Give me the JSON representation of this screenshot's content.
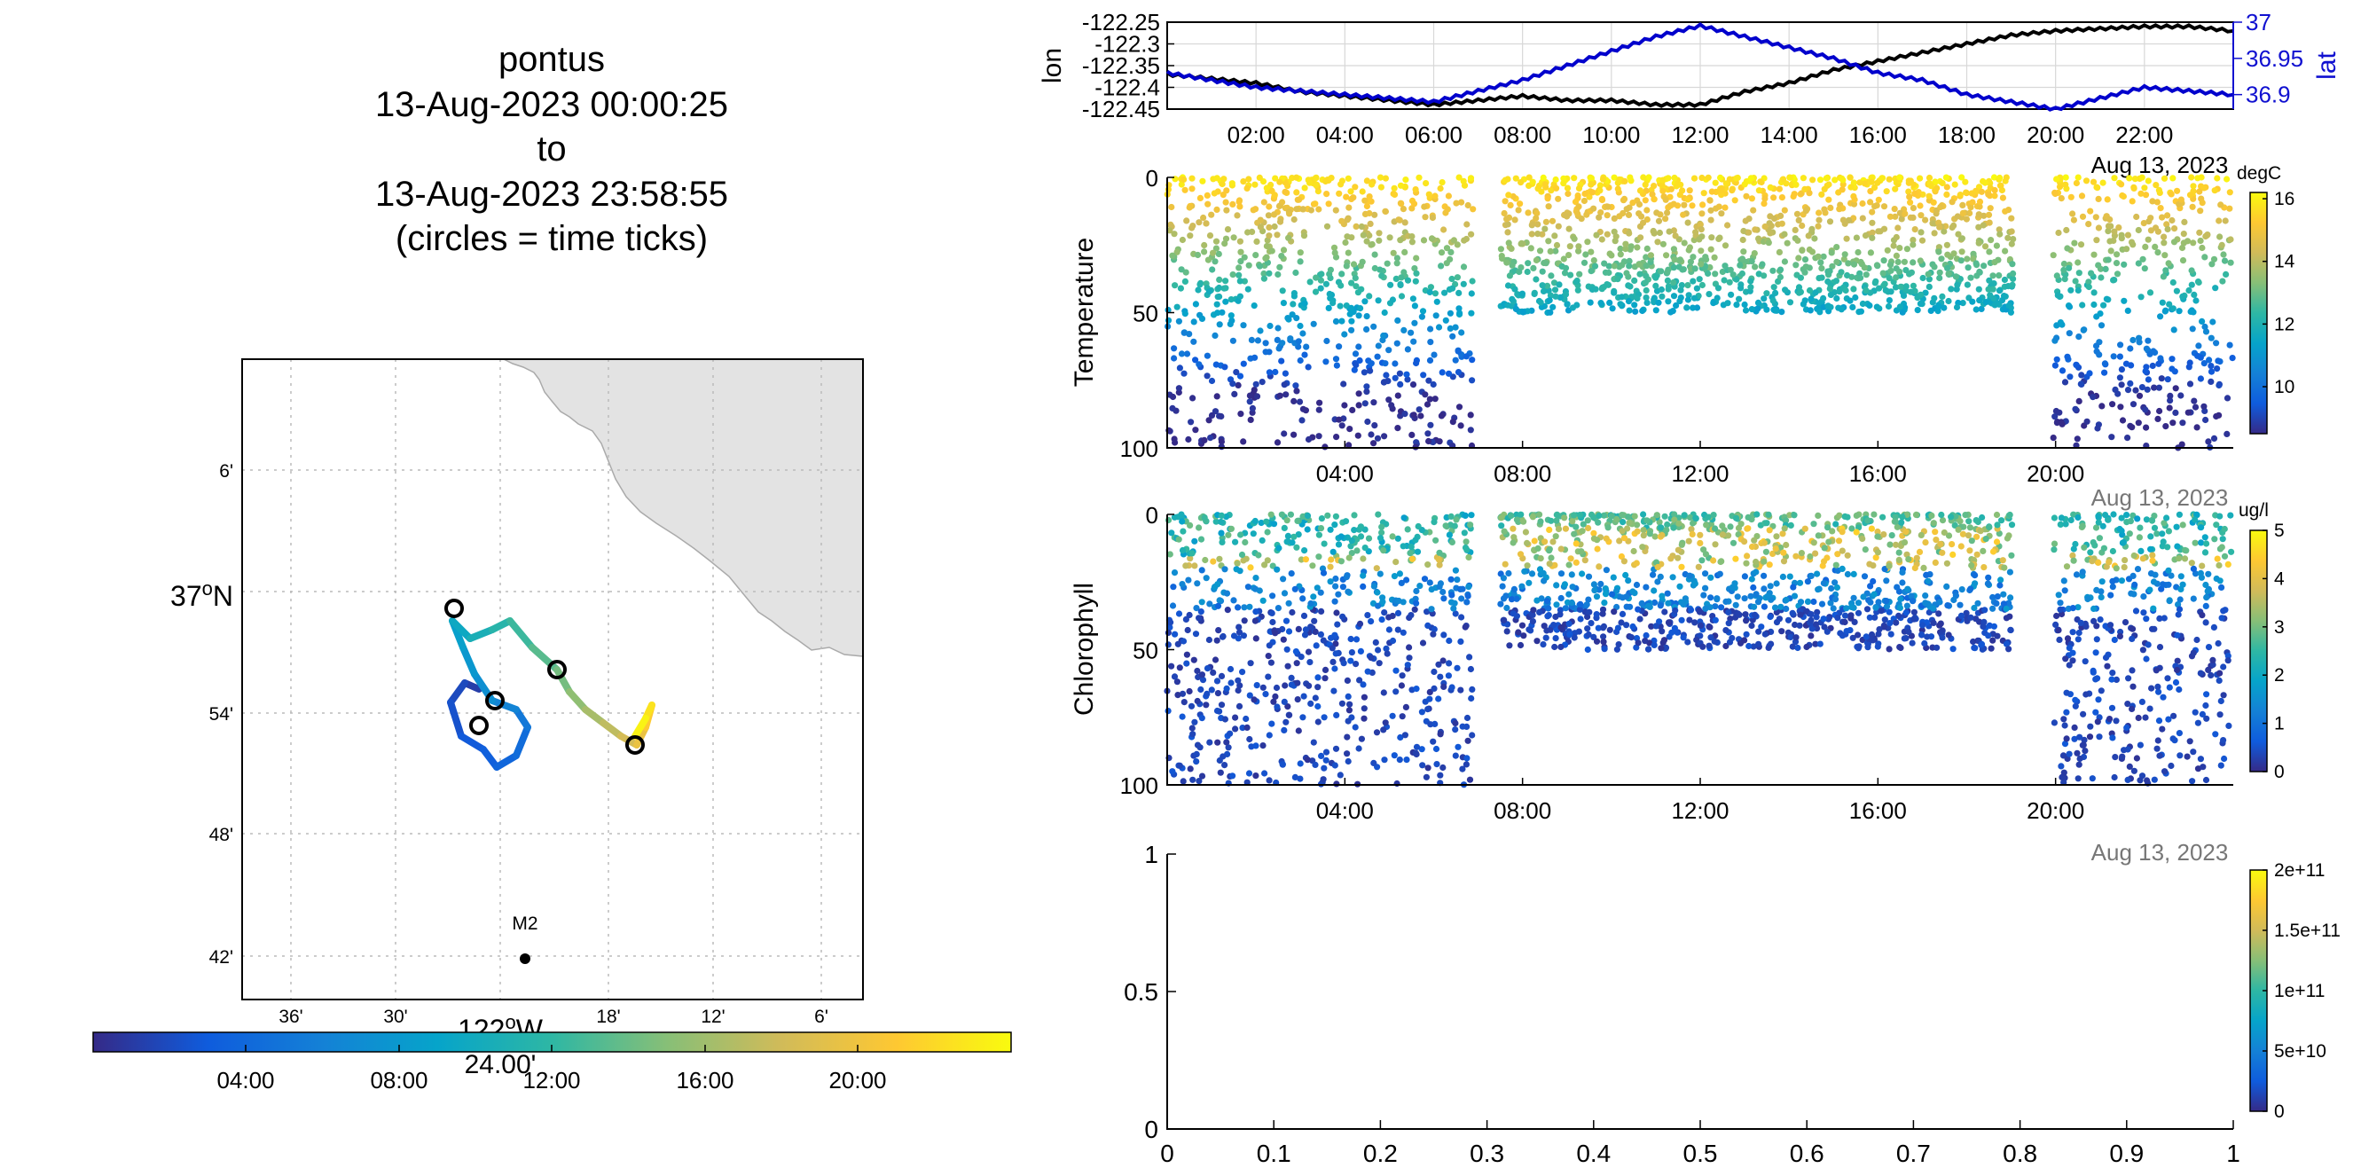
{
  "title": {
    "lines": [
      "pontus",
      "13-Aug-2023 00:00:25",
      "to",
      "13-Aug-2023 23:58:55",
      "(circles = time ticks)"
    ]
  },
  "map": {
    "lat_ticks": [
      "6'",
      "37",
      "54'",
      "48'",
      "42'"
    ],
    "lat_center_suffix": "N",
    "lon_ticks": [
      "36'",
      "30'",
      "24'",
      "18'",
      "12'",
      "6'"
    ],
    "lon_center_label": "122",
    "lon_center_suffix": "W",
    "lon_center_minutes": "24.00'",
    "station_label": "M2",
    "track_color": "#000000"
  },
  "time_colorbar": {
    "ticks": [
      "04:00",
      "08:00",
      "12:00",
      "16:00",
      "20:00"
    ]
  },
  "colors": {
    "land": "#e3e3e3",
    "lon_line": "#000000",
    "lat_line": "#0000cc",
    "parula": [
      "#352a87",
      "#0f5cdd",
      "#1481d6",
      "#06a4ca",
      "#2eb7a4",
      "#87bf77",
      "#d1bb59",
      "#fec832",
      "#f9fb0e"
    ]
  },
  "chart_data": [
    {
      "type": "line",
      "title": "",
      "xlabel": "",
      "ylabel": "lon",
      "y2label": "lat",
      "x_ticks": [
        "02:00",
        "04:00",
        "06:00",
        "08:00",
        "10:00",
        "12:00",
        "14:00",
        "16:00",
        "18:00",
        "20:00",
        "22:00"
      ],
      "date_label": "Aug 13, 2023",
      "ylim": [
        -122.45,
        -122.25
      ],
      "y_ticks": [
        "-122.25",
        "-122.3",
        "-122.35",
        "-122.4",
        "-122.45"
      ],
      "y2lim": [
        36.88,
        37.0
      ],
      "y2_ticks": [
        "37",
        "36.95",
        "36.9"
      ],
      "series": [
        {
          "name": "lon",
          "x": [
            "00:00",
            "01:00",
            "02:00",
            "03:00",
            "04:00",
            "05:00",
            "06:00",
            "07:00",
            "08:00",
            "09:00",
            "10:00",
            "11:00",
            "12:00",
            "13:00",
            "14:00",
            "15:00",
            "16:00",
            "17:00",
            "18:00",
            "19:00",
            "20:00",
            "21:00",
            "22:00",
            "23:00",
            "24:00"
          ],
          "values": [
            -122.37,
            -122.38,
            -122.39,
            -122.41,
            -122.42,
            -122.43,
            -122.44,
            -122.43,
            -122.42,
            -122.43,
            -122.43,
            -122.44,
            -122.44,
            -122.41,
            -122.39,
            -122.36,
            -122.34,
            -122.32,
            -122.3,
            -122.28,
            -122.27,
            -122.265,
            -122.26,
            -122.26,
            -122.27
          ]
        },
        {
          "name": "lat",
          "x": [
            "00:00",
            "01:00",
            "02:00",
            "03:00",
            "04:00",
            "05:00",
            "06:00",
            "07:00",
            "08:00",
            "09:00",
            "10:00",
            "11:00",
            "12:00",
            "13:00",
            "14:00",
            "15:00",
            "16:00",
            "17:00",
            "18:00",
            "19:00",
            "20:00",
            "21:00",
            "22:00",
            "23:00",
            "24:00"
          ],
          "values": [
            36.93,
            36.92,
            36.91,
            36.905,
            36.9,
            36.895,
            36.89,
            36.905,
            36.92,
            36.94,
            36.96,
            36.98,
            36.995,
            36.98,
            36.965,
            36.95,
            36.93,
            36.92,
            36.9,
            36.89,
            36.88,
            36.895,
            36.91,
            36.905,
            36.9
          ]
        }
      ]
    },
    {
      "type": "scatter",
      "title": "",
      "ylabel": "Temperature",
      "colorbar_unit": "degC",
      "colorbar_ticks": [
        "16",
        "14",
        "12",
        "10"
      ],
      "clim": [
        8.5,
        16.2
      ],
      "x_ticks": [
        "04:00",
        "08:00",
        "12:00",
        "16:00",
        "20:00"
      ],
      "date_label": "Aug 13, 2023",
      "ylim": [
        100,
        0
      ],
      "y_ticks": [
        "0",
        "50",
        "100"
      ],
      "description_gaps": [
        [
          "07:30",
          "07:30"
        ],
        [
          "19:00",
          "19:50"
        ]
      ],
      "depth_max_by_period": [
        [
          "00:00",
          "07:30",
          100
        ],
        [
          "07:30",
          "19:00",
          50
        ],
        [
          "19:50",
          "24:00",
          100
        ]
      ]
    },
    {
      "type": "scatter",
      "title": "",
      "ylabel": "Chlorophyll",
      "colorbar_unit": "ug/l",
      "colorbar_ticks": [
        "5",
        "4",
        "3",
        "2",
        "1",
        "0"
      ],
      "clim": [
        0,
        5
      ],
      "x_ticks": [
        "04:00",
        "08:00",
        "12:00",
        "16:00",
        "20:00"
      ],
      "date_label": "Aug 13, 2023",
      "ylim": [
        100,
        0
      ],
      "y_ticks": [
        "0",
        "50",
        "100"
      ]
    },
    {
      "type": "scatter",
      "title": "",
      "ylabel": "",
      "x_ticks": [
        "0",
        "0.1",
        "0.2",
        "0.3",
        "0.4",
        "0.5",
        "0.6",
        "0.7",
        "0.8",
        "0.9",
        "1"
      ],
      "y_ticks": [
        "1",
        "0.5",
        "0"
      ],
      "xlim": [
        0,
        1
      ],
      "ylim": [
        0,
        1
      ],
      "colorbar_ticks": [
        "2e+11",
        "1.5e+11",
        "1e+11",
        "5e+10",
        "0"
      ],
      "clim": [
        0,
        200000000000
      ]
    }
  ]
}
